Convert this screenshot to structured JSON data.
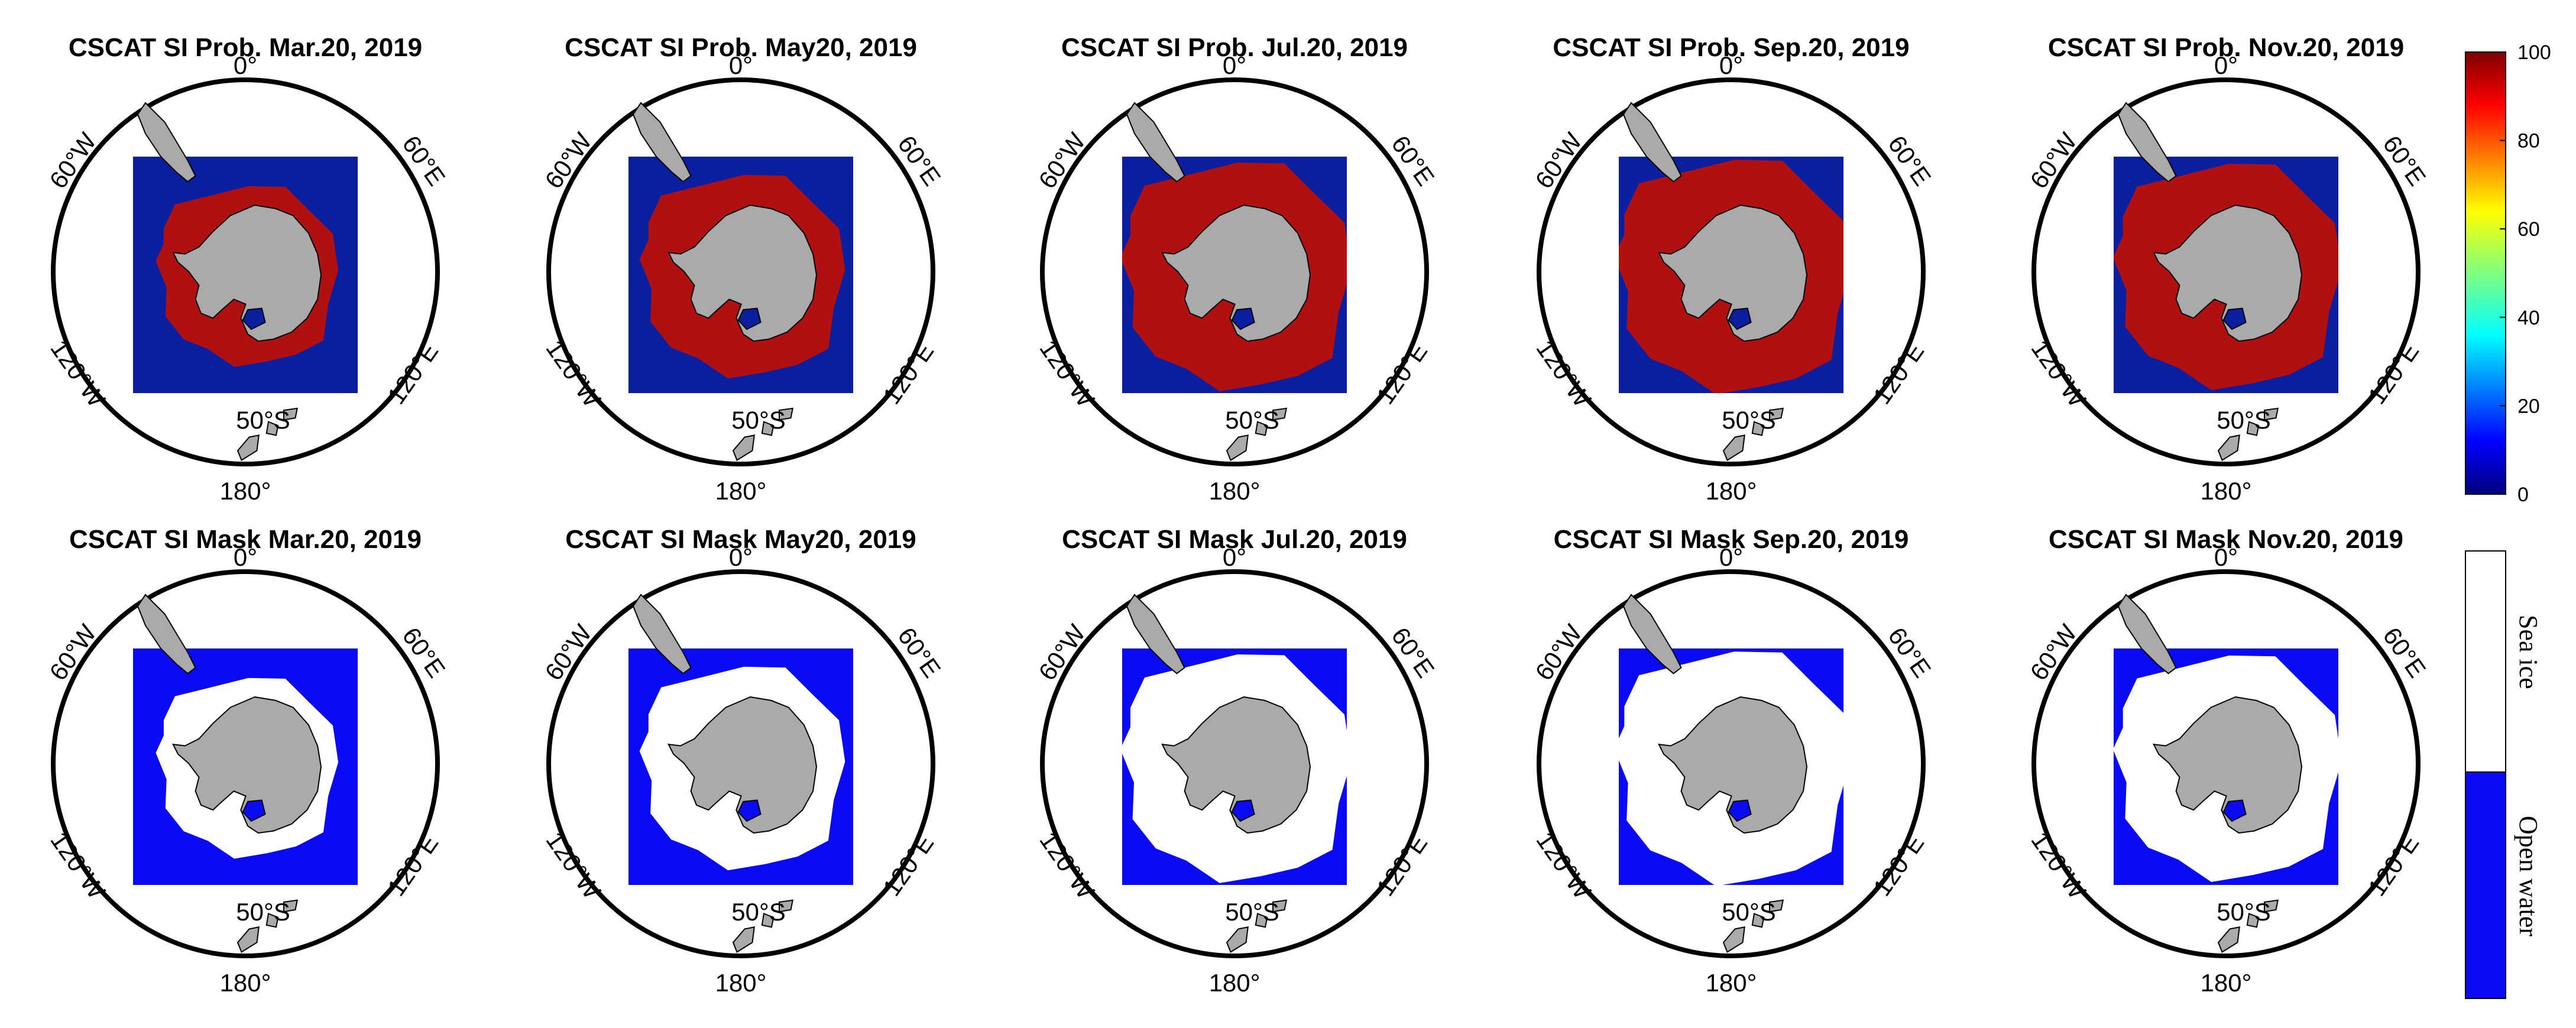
{
  "palette": {
    "ocean_prob": "#0b1ea0",
    "ice_prob": "#b01010",
    "land": "#aaaaaa",
    "open_water": "#0a0af5",
    "sea_ice": "#ffffff"
  },
  "labels": {
    "top": "0°",
    "bottom": "180°",
    "left_upper": "60°W",
    "right_upper": "60°E",
    "left_lower": "120°W",
    "right_lower": "120°E",
    "latitude": "50°S"
  },
  "rows": [
    {
      "kind": "probability",
      "panels": [
        {
          "title": "CSCAT SI Prob. Mar.20, 2019",
          "ice_extent": 0.58
        },
        {
          "title": "CSCAT SI Prob. May20, 2019",
          "ice_extent": 0.78
        },
        {
          "title": "CSCAT SI Prob. Jul.20, 2019",
          "ice_extent": 1.0
        },
        {
          "title": "CSCAT SI Prob. Sep.20, 2019",
          "ice_extent": 1.05
        },
        {
          "title": "CSCAT SI Prob. Nov.20, 2019",
          "ice_extent": 0.98
        }
      ]
    },
    {
      "kind": "mask",
      "panels": [
        {
          "title": "CSCAT SI Mask Mar.20, 2019",
          "ice_extent": 0.58
        },
        {
          "title": "CSCAT SI Mask May20, 2019",
          "ice_extent": 0.78
        },
        {
          "title": "CSCAT SI Mask Jul.20, 2019",
          "ice_extent": 1.0
        },
        {
          "title": "CSCAT SI Mask Sep.20, 2019",
          "ice_extent": 1.05
        },
        {
          "title": "CSCAT SI Mask Nov.20, 2019",
          "ice_extent": 0.98
        }
      ]
    }
  ],
  "colorbar_prob": {
    "ticks": [
      "0",
      "20",
      "40",
      "60",
      "80",
      "100"
    ],
    "range": [
      0,
      100
    ]
  },
  "colorbar_mask": {
    "categories": [
      "Sea ice",
      "Open water"
    ]
  }
}
